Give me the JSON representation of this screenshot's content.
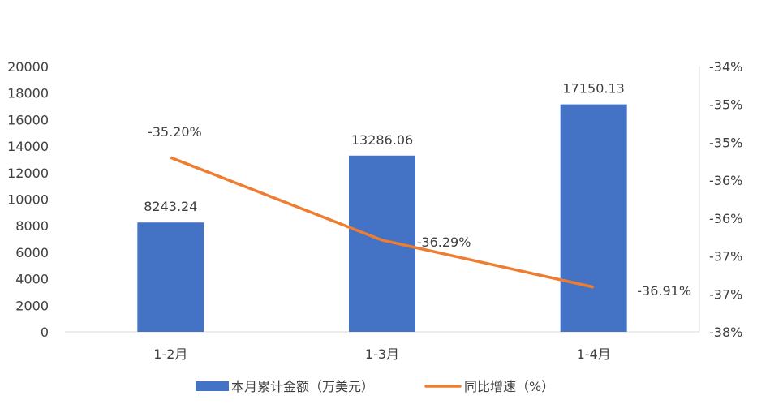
{
  "chart_data": {
    "type": "bar+line",
    "categories": [
      "1-2月",
      "1-3月",
      "1-4月"
    ],
    "series": [
      {
        "name": "本月累计金额（万美元）",
        "type": "bar",
        "axis": "left",
        "values": [
          8243.24,
          13286.06,
          17150.13
        ],
        "labels": [
          "8243.24",
          "13286.06",
          "17150.13"
        ],
        "color": "#4472C4"
      },
      {
        "name": "同比增速（%）",
        "type": "line",
        "axis": "right",
        "values": [
          -35.2,
          -36.29,
          -36.91
        ],
        "labels": [
          "-35.20%",
          "-36.29%",
          "-36.91%"
        ],
        "color": "#ED7D31"
      }
    ],
    "left_axis": {
      "ylim": [
        0,
        20000
      ],
      "ticks": [
        "0",
        "2000",
        "4000",
        "6000",
        "8000",
        "10000",
        "12000",
        "14000",
        "16000",
        "18000",
        "20000"
      ]
    },
    "right_axis": {
      "ylim": [
        -37.5,
        -34
      ],
      "ticks": [
        "-38%",
        "-37%",
        "-37%",
        "-36%",
        "-36%",
        "-35%",
        "-35%",
        "-34%"
      ]
    },
    "grid": false,
    "legend": "bottom",
    "legend_labels": [
      "本月累计金额（万美元）",
      "同比增速（%）"
    ]
  }
}
